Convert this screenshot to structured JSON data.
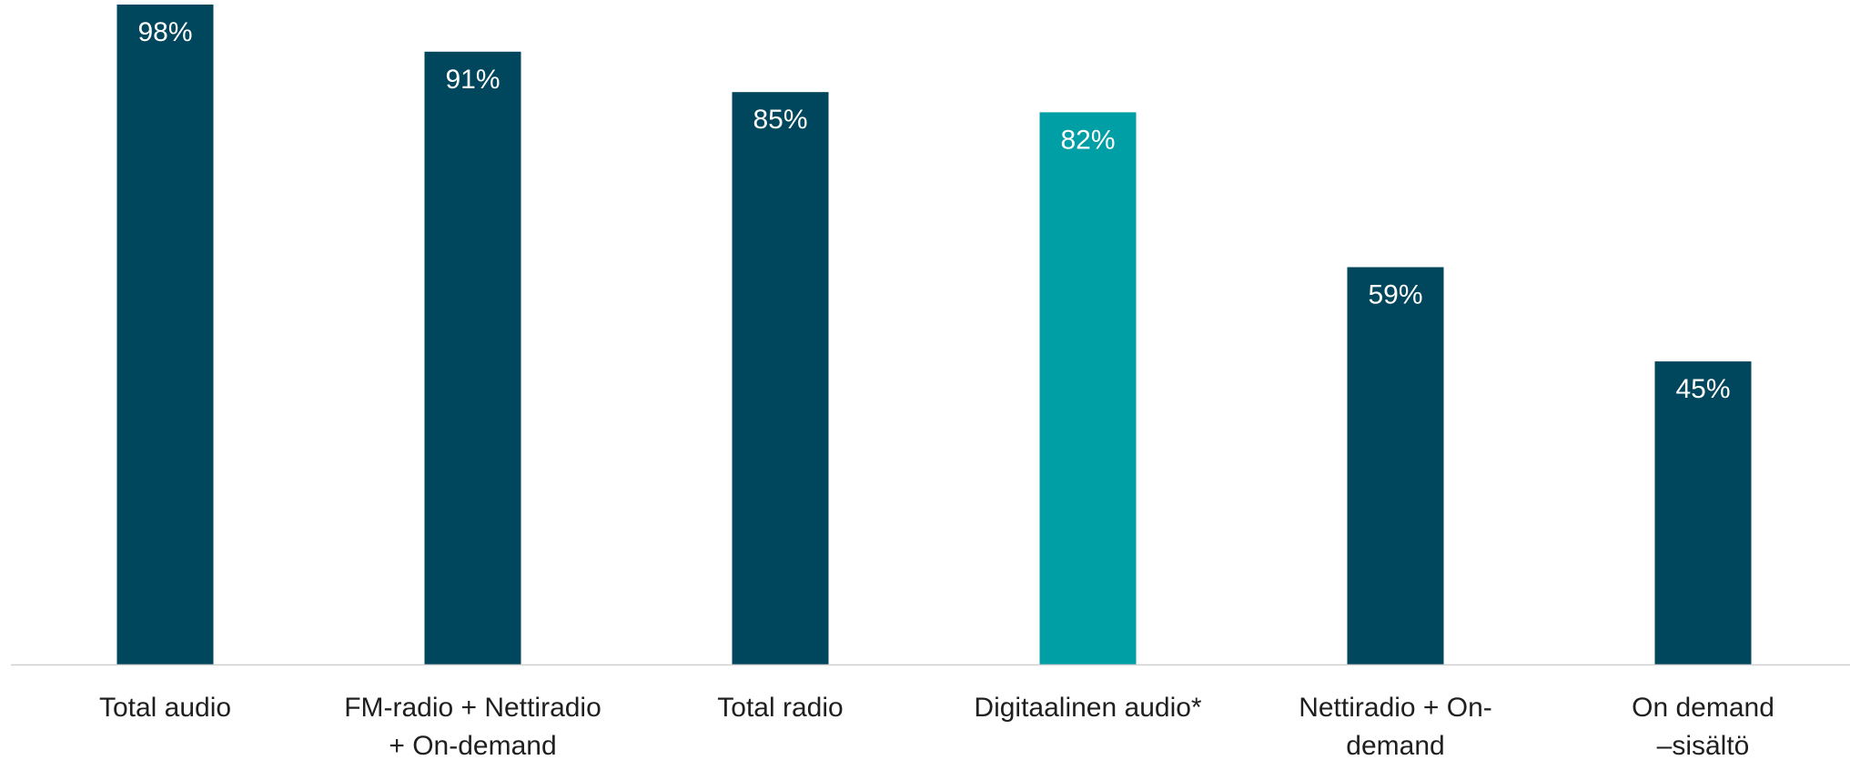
{
  "chart_data": {
    "type": "bar",
    "categories": [
      [
        "Total audio"
      ],
      [
        "FM-radio + Nettiradio",
        "+ On-demand"
      ],
      [
        "Total radio"
      ],
      [
        "Digitaalinen audio*"
      ],
      [
        "Nettiradio + On-",
        "demand"
      ],
      [
        "On demand",
        "–sisältö"
      ]
    ],
    "values": [
      98,
      91,
      85,
      82,
      59,
      45
    ],
    "value_labels": [
      "98%",
      "91%",
      "85%",
      "82%",
      "59%",
      "45%"
    ],
    "highlight_index": 3,
    "ylim": [
      0,
      100
    ],
    "title": "",
    "xlabel": "",
    "ylabel": "",
    "grid": false,
    "colors": {
      "bar": "#00465c",
      "highlight": "#009ea5",
      "axis": "#d0d0d0",
      "bar_label": "#ffffff",
      "category_label": "#1f1f1f"
    }
  }
}
